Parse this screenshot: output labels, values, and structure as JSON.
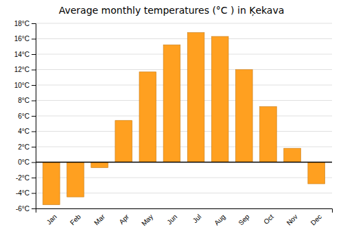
{
  "chart_data": {
    "type": "bar",
    "title": "Average monthly temperatures (°C ) in Ķekava",
    "categories": [
      "Jan",
      "Feb",
      "Mar",
      "Apr",
      "May",
      "Jun",
      "Jul",
      "Aug",
      "Sep",
      "Oct",
      "Nov",
      "Dec"
    ],
    "values": [
      -5.5,
      -4.5,
      -0.7,
      5.4,
      11.7,
      15.2,
      16.8,
      16.3,
      12.0,
      7.2,
      1.8,
      -2.8
    ],
    "color": "#FFA020",
    "ylim": [
      -6,
      18
    ],
    "yticks": [
      {
        "value": -6,
        "label": "-6°C"
      },
      {
        "value": -4,
        "label": "-4°C"
      },
      {
        "value": -2,
        "label": "-2°C"
      },
      {
        "value": 0,
        "label": "0°C"
      },
      {
        "value": 2,
        "label": "2°C"
      },
      {
        "value": 4,
        "label": "4°C"
      },
      {
        "value": 6,
        "label": "6°C"
      },
      {
        "value": 8,
        "label": "8°C"
      },
      {
        "value": 10,
        "label": "10°C"
      },
      {
        "value": 12,
        "label": "12°C"
      },
      {
        "value": 14,
        "label": "14°C"
      },
      {
        "value": 16,
        "label": "16°C"
      },
      {
        "value": 18,
        "label": "18°C"
      }
    ],
    "grid": true
  }
}
